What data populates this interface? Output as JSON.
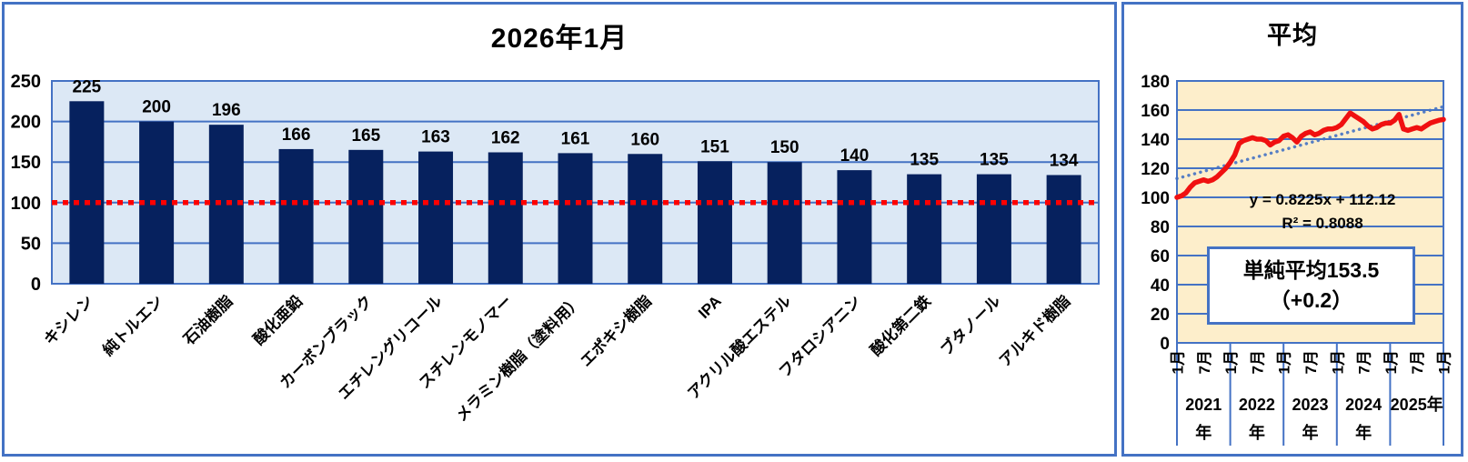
{
  "page": {
    "accent_blue": "#4472C4",
    "background": "#FFFFFF"
  },
  "chart_data": [
    {
      "type": "bar",
      "title": "2026年1月",
      "categories": [
        "キシレン",
        "純トルエン",
        "石油樹脂",
        "酸化亜鉛",
        "カーボンブラック",
        "エチレングリコール",
        "スチレンモノマー",
        "メラミン樹脂（塗料用）",
        "エポキシ樹脂",
        "IPA",
        "アクリル酸エステル",
        "フタロシアニン",
        "酸化第二鉄",
        "ブタノール",
        "アルキド樹脂"
      ],
      "values": [
        225,
        200,
        196,
        166,
        165,
        163,
        162,
        161,
        160,
        151,
        150,
        140,
        135,
        135,
        134
      ],
      "xlabel": "",
      "ylabel": "",
      "ylim": [
        0,
        250
      ],
      "yticks": [
        0,
        50,
        100,
        150,
        200,
        250
      ],
      "grid": "on",
      "data_labels": "on",
      "reference_line": {
        "value": 100,
        "color": "#FF0000",
        "style": "dashed"
      },
      "bar_color": "#06215E",
      "plot_bg": "#DCE8F5",
      "grid_color": "#4472C4"
    },
    {
      "type": "line",
      "title": "平均",
      "x_tick_labels": [
        "1月",
        "7月",
        "1月",
        "7月",
        "1月",
        "7月",
        "1月",
        "7月",
        "1月",
        "7月",
        "1月"
      ],
      "year_labels": [
        "2021年",
        "2022年",
        "2023年",
        "2024年",
        "2025年"
      ],
      "values": [
        100,
        101,
        103,
        107,
        110,
        111,
        112,
        111,
        112,
        114,
        117,
        120,
        124,
        129,
        137,
        139,
        140,
        141,
        140,
        140,
        139,
        136,
        138,
        139,
        142,
        143,
        141,
        138,
        142,
        144,
        145,
        143,
        144,
        146,
        147,
        147,
        148,
        150,
        154,
        158,
        156,
        154,
        152,
        149,
        147,
        148,
        150,
        151,
        151,
        153,
        157,
        147,
        146,
        147,
        148,
        147,
        149,
        151,
        152,
        153,
        153.5
      ],
      "xlabel": "",
      "ylabel": "",
      "ylim": [
        0,
        180
      ],
      "yticks": [
        0,
        20,
        40,
        60,
        80,
        100,
        120,
        140,
        160,
        180
      ],
      "grid": "on",
      "line_color": "#F01010",
      "plot_bg": "#FDEECB",
      "grid_color": "#4472C4",
      "trendline": {
        "slope": 0.8225,
        "intercept": 112.12,
        "equation_label": "y = 0.8225x + 112.12",
        "r2_label": "R² = 0.8088",
        "color": "#4472C4",
        "style": "dotted"
      },
      "annotation": {
        "line1": "単純平均153.5",
        "line2": "（+0.2）"
      }
    }
  ]
}
